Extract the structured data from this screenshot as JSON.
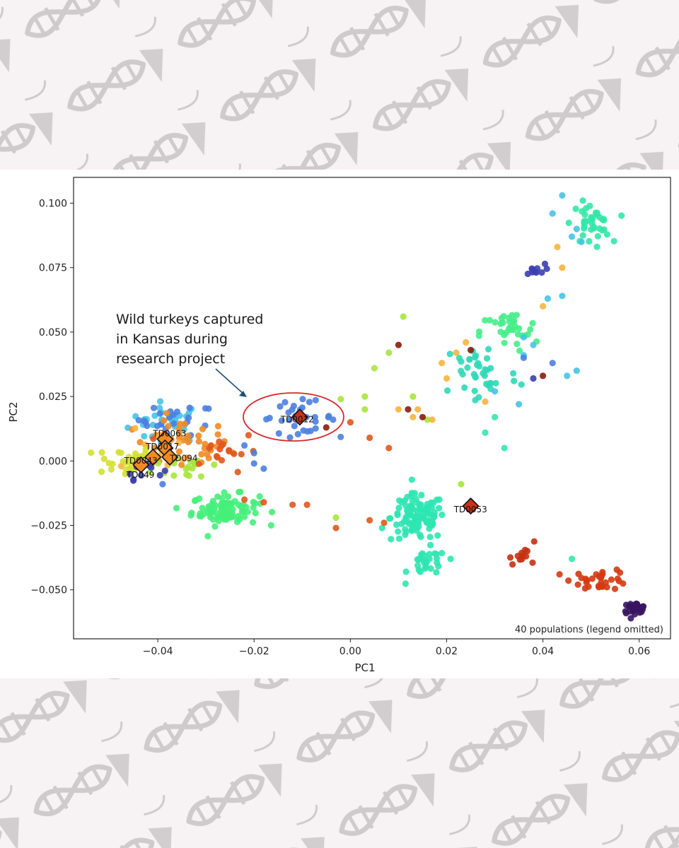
{
  "chart_data": {
    "type": "scatter",
    "xlabel": "PC1",
    "ylabel": "PC2",
    "xlim": [
      -0.0575,
      0.0665
    ],
    "ylim": [
      -0.069,
      0.11
    ],
    "xticks": [
      -0.04,
      -0.02,
      0.0,
      0.02,
      0.04,
      0.06
    ],
    "xtick_labels": [
      "−0.04",
      "−0.02",
      "0.00",
      "0.02",
      "0.04",
      "0.06"
    ],
    "yticks": [
      -0.05,
      -0.025,
      0.0,
      0.025,
      0.05,
      0.075,
      0.1
    ],
    "ytick_labels": [
      "−0.050",
      "−0.025",
      "0.000",
      "0.025",
      "0.050",
      "0.075",
      "0.100"
    ],
    "grid": false,
    "note": "40 populations (legend omitted)",
    "annotation": {
      "text_lines": [
        "Wild turkeys captured",
        "in Kansas during",
        "research project"
      ],
      "ellipse_color": "#d9262b",
      "arrow_color": "#1f4e79"
    },
    "clusters": [
      {
        "color": "#46c3e6",
        "cx": -0.038,
        "cy": 0.015,
        "sx": 0.004,
        "sy": 0.004,
        "n": 30
      },
      {
        "color": "#4b7fe0",
        "cx": -0.036,
        "cy": 0.016,
        "sx": 0.004,
        "sy": 0.003,
        "n": 22
      },
      {
        "color": "#f08a24",
        "cx": -0.035,
        "cy": 0.006,
        "sx": 0.005,
        "sy": 0.005,
        "n": 45
      },
      {
        "color": "#f6b53c",
        "cx": -0.04,
        "cy": 0.004,
        "sx": 0.004,
        "sy": 0.004,
        "n": 14
      },
      {
        "color": "#d4e030",
        "cx": -0.047,
        "cy": 0.0,
        "sx": 0.003,
        "sy": 0.003,
        "n": 34
      },
      {
        "color": "#a6e63c",
        "cx": -0.033,
        "cy": -0.002,
        "sx": 0.004,
        "sy": 0.003,
        "n": 18
      },
      {
        "color": "#e0581c",
        "cx": -0.027,
        "cy": 0.004,
        "sx": 0.004,
        "sy": 0.004,
        "n": 18
      },
      {
        "color": "#3a3fb0",
        "cx": -0.043,
        "cy": -0.003,
        "sx": 0.002,
        "sy": 0.002,
        "n": 10
      },
      {
        "color": "#44f07a",
        "cx": -0.026,
        "cy": -0.019,
        "sx": 0.0035,
        "sy": 0.003,
        "n": 90
      },
      {
        "color": "#4b7fe0",
        "cx": -0.011,
        "cy": 0.017,
        "sx": 0.004,
        "sy": 0.003,
        "n": 34
      },
      {
        "color": "#2ee6b2",
        "cx": 0.014,
        "cy": -0.022,
        "sx": 0.0028,
        "sy": 0.0045,
        "n": 110
      },
      {
        "color": "#2ee6b2",
        "cx": 0.016,
        "cy": -0.04,
        "sx": 0.002,
        "sy": 0.003,
        "n": 30
      },
      {
        "color": "#d43a12",
        "cx": 0.052,
        "cy": -0.046,
        "sx": 0.003,
        "sy": 0.002,
        "n": 32
      },
      {
        "color": "#c83012",
        "cx": 0.037,
        "cy": -0.036,
        "sx": 0.002,
        "sy": 0.002,
        "n": 12
      },
      {
        "color": "#3a1560",
        "cx": 0.059,
        "cy": -0.057,
        "sx": 0.0013,
        "sy": 0.001,
        "n": 28
      },
      {
        "color": "#32e8a8",
        "cx": 0.05,
        "cy": 0.092,
        "sx": 0.002,
        "sy": 0.004,
        "n": 38
      },
      {
        "color": "#3a3fb0",
        "cx": 0.038,
        "cy": 0.074,
        "sx": 0.0012,
        "sy": 0.0012,
        "n": 10
      },
      {
        "color": "#44ee88",
        "cx": 0.033,
        "cy": 0.05,
        "sx": 0.003,
        "sy": 0.004,
        "n": 34
      },
      {
        "color": "#30d8b8",
        "cx": 0.027,
        "cy": 0.034,
        "sx": 0.004,
        "sy": 0.007,
        "n": 38
      }
    ],
    "scattered_points": [
      {
        "color": "#e0581c",
        "x": -0.022,
        "y": -0.015
      },
      {
        "color": "#e0581c",
        "x": -0.018,
        "y": -0.016
      },
      {
        "color": "#e0581c",
        "x": -0.012,
        "y": -0.017
      },
      {
        "color": "#e0581c",
        "x": -0.009,
        "y": -0.017
      },
      {
        "color": "#e0581c",
        "x": -0.003,
        "y": -0.026
      },
      {
        "color": "#e0581c",
        "x": 0.004,
        "y": -0.023
      },
      {
        "color": "#e0581c",
        "x": 0.007,
        "y": -0.024
      },
      {
        "color": "#e0581c",
        "x": 0.004,
        "y": 0.009
      },
      {
        "color": "#e0581c",
        "x": 0.008,
        "y": 0.005
      },
      {
        "color": "#e0581c",
        "x": 0.0,
        "y": 0.015
      },
      {
        "color": "#a6e63c",
        "x": -0.003,
        "y": -0.022
      },
      {
        "color": "#a6e63c",
        "x": 0.011,
        "y": 0.056
      },
      {
        "color": "#a6e63c",
        "x": 0.008,
        "y": 0.042
      },
      {
        "color": "#a6e63c",
        "x": 0.005,
        "y": 0.036
      },
      {
        "color": "#a6e63c",
        "x": -0.002,
        "y": 0.024
      },
      {
        "color": "#a6e63c",
        "x": 0.003,
        "y": 0.025
      },
      {
        "color": "#a6e63c",
        "x": 0.023,
        "y": -0.009
      },
      {
        "color": "#a6e63c",
        "x": 0.016,
        "y": 0.016
      },
      {
        "color": "#a6e63c",
        "x": 0.013,
        "y": 0.025
      },
      {
        "color": "#a6e63c",
        "x": 0.003,
        "y": 0.02
      },
      {
        "color": "#f6b53c",
        "x": 0.01,
        "y": 0.02
      },
      {
        "color": "#f6b53c",
        "x": 0.013,
        "y": 0.017
      },
      {
        "color": "#f6b53c",
        "x": 0.017,
        "y": 0.016
      },
      {
        "color": "#f6b53c",
        "x": 0.019,
        "y": 0.038
      },
      {
        "color": "#f6b53c",
        "x": 0.022,
        "y": 0.042
      },
      {
        "color": "#f6b53c",
        "x": 0.024,
        "y": 0.046
      },
      {
        "color": "#f6b53c",
        "x": 0.028,
        "y": 0.023
      },
      {
        "color": "#f6b53c",
        "x": 0.043,
        "y": 0.083
      },
      {
        "color": "#f6b53c",
        "x": 0.044,
        "y": 0.075
      },
      {
        "color": "#f6b53c",
        "x": 0.04,
        "y": 0.06
      },
      {
        "color": "#f6b53c",
        "x": 0.014,
        "y": 0.02
      },
      {
        "color": "#f6b53c",
        "x": 0.02,
        "y": 0.032
      },
      {
        "color": "#8a1c0c",
        "x": 0.01,
        "y": 0.045
      },
      {
        "color": "#8a1c0c",
        "x": 0.025,
        "y": 0.043
      },
      {
        "color": "#8a1c0c",
        "x": 0.04,
        "y": 0.033
      },
      {
        "color": "#8a1c0c",
        "x": 0.012,
        "y": 0.02
      },
      {
        "color": "#8a1c0c",
        "x": 0.015,
        "y": 0.017
      },
      {
        "color": "#8a1c0c",
        "x": -0.005,
        "y": 0.013
      },
      {
        "color": "#46c3e6",
        "x": 0.044,
        "y": 0.103
      },
      {
        "color": "#46c3e6",
        "x": 0.042,
        "y": 0.096
      },
      {
        "color": "#46c3e6",
        "x": 0.046,
        "y": 0.087
      },
      {
        "color": "#46c3e6",
        "x": 0.048,
        "y": 0.085
      },
      {
        "color": "#46c3e6",
        "x": 0.047,
        "y": 0.09
      },
      {
        "color": "#46c3e6",
        "x": 0.041,
        "y": 0.063
      },
      {
        "color": "#46c3e6",
        "x": 0.044,
        "y": 0.064
      },
      {
        "color": "#46c3e6",
        "x": 0.036,
        "y": 0.048
      },
      {
        "color": "#46c3e6",
        "x": 0.038,
        "y": 0.045
      },
      {
        "color": "#46c3e6",
        "x": 0.047,
        "y": 0.035
      },
      {
        "color": "#46c3e6",
        "x": 0.045,
        "y": 0.033
      },
      {
        "color": "#46c3e6",
        "x": 0.035,
        "y": 0.022
      },
      {
        "color": "#46c3e6",
        "x": 0.03,
        "y": 0.027
      },
      {
        "color": "#46c3e6",
        "x": 0.036,
        "y": 0.041
      },
      {
        "color": "#4b7fe0",
        "x": 0.042,
        "y": 0.038
      },
      {
        "color": "#4b7fe0",
        "x": 0.036,
        "y": 0.04
      },
      {
        "color": "#4b7fe0",
        "x": -0.022,
        "y": 0.006
      },
      {
        "color": "#4b7fe0",
        "x": -0.02,
        "y": 0.003
      },
      {
        "color": "#4b7fe0",
        "x": -0.02,
        "y": -0.001
      },
      {
        "color": "#4b7fe0",
        "x": -0.018,
        "y": -0.003
      },
      {
        "color": "#4b7fe0",
        "x": -0.039,
        "y": -0.009
      },
      {
        "color": "#3a3fb0",
        "x": 0.038,
        "y": 0.032
      },
      {
        "color": "#32e8a8",
        "x": 0.032,
        "y": 0.005
      },
      {
        "color": "#32e8a8",
        "x": 0.028,
        "y": 0.011
      },
      {
        "color": "#32e8a8",
        "x": 0.03,
        "y": 0.017
      },
      {
        "color": "#32e8a8",
        "x": 0.046,
        "y": -0.038
      }
    ],
    "highlighted": [
      {
        "label": "TD0063",
        "x": -0.0385,
        "y": 0.0085,
        "color": "#f08a24",
        "lx": -0.041,
        "ly": 0.0095
      },
      {
        "label": "TD0017",
        "x": -0.0385,
        "y": 0.005,
        "color": "#f08a24",
        "lx": -0.0425,
        "ly": 0.0045
      },
      {
        "label": "TD094",
        "x": -0.0375,
        "y": 0.0015,
        "color": "#f08a24",
        "lx": -0.0375,
        "ly": 0.0
      },
      {
        "label": "TD0043",
        "x": -0.041,
        "y": 0.0015,
        "color": "#f08a24",
        "lx": -0.047,
        "ly": -0.001
      },
      {
        "label": "TD049",
        "x": -0.0435,
        "y": -0.0015,
        "color": "#f08a24",
        "lx": -0.0465,
        "ly": -0.0065
      },
      {
        "label": "TD0012",
        "x": -0.0105,
        "y": 0.017,
        "color": "#c8341a",
        "lx": -0.0145,
        "ly": 0.015
      },
      {
        "label": "TD0053",
        "x": 0.025,
        "y": -0.0175,
        "color": "#c8341a",
        "lx": 0.0215,
        "ly": -0.02
      }
    ]
  }
}
